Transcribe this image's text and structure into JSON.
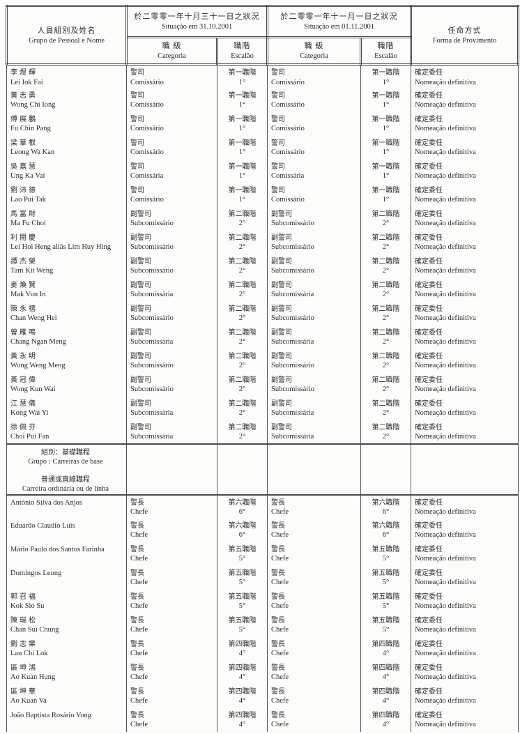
{
  "header": {
    "name_zh": "人員組別及姓名",
    "name_pt": "Grupo de Pessoal e Nome",
    "sit1_zh": "於二零零一年十月三十一日之狀況",
    "sit1_pt": "Situação em 31.10.2001",
    "sit2_zh": "於二零零一年十一月一日之狀況",
    "sit2_pt": "Situação em 01.11.2001",
    "categoria_zh": "職 級",
    "categoria_pt": "Categoria",
    "escalao_zh": "職階",
    "escalao_pt": "Escalão",
    "prov_zh": "任命方式",
    "prov_pt": "Forma de Provimento"
  },
  "rows": [
    {
      "type": "person",
      "name_zh": "李煜輝",
      "name_pt": "Lei Iok Fai",
      "cat1_zh": "警司",
      "cat1_pt": "Comissário",
      "esc1_zh": "第一職階",
      "esc1_pt": "1°",
      "cat2_zh": "警司",
      "cat2_pt": "Comissário",
      "esc2_zh": "第一職階",
      "esc2_pt": "1°",
      "prov_zh": "確定委任",
      "prov_pt": "Nomeação definitiva"
    },
    {
      "type": "person",
      "name_zh": "黃志勇",
      "name_pt": "Wong Chi Iong",
      "cat1_zh": "警司",
      "cat1_pt": "Comissário",
      "esc1_zh": "第一職階",
      "esc1_pt": "1°",
      "cat2_zh": "警司",
      "cat2_pt": "Comissário",
      "esc2_zh": "第一職階",
      "esc2_pt": "1°",
      "prov_zh": "確定委任",
      "prov_pt": "Nomeação definitiva"
    },
    {
      "type": "person",
      "name_zh": "傅展鵬",
      "name_pt": "Fu Chin Pang",
      "cat1_zh": "警司",
      "cat1_pt": "Comissário",
      "esc1_zh": "第一職階",
      "esc1_pt": "1°",
      "cat2_zh": "警司",
      "cat2_pt": "Comissário",
      "esc2_zh": "第一職階",
      "esc2_pt": "1°",
      "prov_zh": "確定委任",
      "prov_pt": "Nomeação definitiva"
    },
    {
      "type": "person",
      "name_zh": "梁華根",
      "name_pt": "Leong Wa Kan",
      "cat1_zh": "警司",
      "cat1_pt": "Comissário",
      "esc1_zh": "第一職階",
      "esc1_pt": "1°",
      "cat2_zh": "警司",
      "cat2_pt": "Comissário",
      "esc2_zh": "第一職階",
      "esc2_pt": "1°",
      "prov_zh": "確定委任",
      "prov_pt": "Nomeação definitiva"
    },
    {
      "type": "person",
      "name_zh": "吳嘉慧",
      "name_pt": "Ung Ka Vai",
      "cat1_zh": "警司",
      "cat1_pt": "Comissária",
      "esc1_zh": "第一職階",
      "esc1_pt": "1°",
      "cat2_zh": "警司",
      "cat2_pt": "Comissária",
      "esc2_zh": "第一職階",
      "esc2_pt": "1°",
      "prov_zh": "確定委任",
      "prov_pt": "Nomeação definitiva"
    },
    {
      "type": "person",
      "name_zh": "劉沛德",
      "name_pt": "Lao Pui Tak",
      "cat1_zh": "警司",
      "cat1_pt": "Comissário",
      "esc1_zh": "第一職階",
      "esc1_pt": "1°",
      "cat2_zh": "警司",
      "cat2_pt": "Comissário",
      "esc2_zh": "第一職階",
      "esc2_pt": "1°",
      "prov_zh": "確定委任",
      "prov_pt": "Nomeação definitiva"
    },
    {
      "type": "person",
      "name_zh": "馬富財",
      "name_pt": "Ma Fu Choi",
      "cat1_zh": "副警司",
      "cat1_pt": "Subcomissário",
      "esc1_zh": "第二職階",
      "esc1_pt": "2°",
      "cat2_zh": "副警司",
      "cat2_pt": "Subcomissário",
      "esc2_zh": "第二職階",
      "esc2_pt": "2°",
      "prov_zh": "確定委任",
      "prov_pt": "Nomeação definitiva"
    },
    {
      "type": "person",
      "name_zh": "利開慶",
      "name_pt": "Lei Hoi Heng aliás Lim Huy Hing",
      "cat1_zh": "副警司",
      "cat1_pt": "Subcomissário",
      "esc1_zh": "第二職階",
      "esc1_pt": "2°",
      "cat2_zh": "副警司",
      "cat2_pt": "Subcomissário",
      "esc2_zh": "第二職階",
      "esc2_pt": "2°",
      "prov_zh": "確定委任",
      "prov_pt": "Nomeação definitiva"
    },
    {
      "type": "person",
      "name_zh": "譚杰榮",
      "name_pt": "Tam Kit Weng",
      "cat1_zh": "副警司",
      "cat1_pt": "Subcomissário",
      "esc1_zh": "第二職階",
      "esc1_pt": "2°",
      "cat2_zh": "副警司",
      "cat2_pt": "Subcomissário",
      "esc2_zh": "第二職階",
      "esc2_pt": "2°",
      "prov_zh": "確定委任",
      "prov_pt": "Nomeação definitiva"
    },
    {
      "type": "person",
      "name_zh": "麥煥賢",
      "name_pt": "Mak Vun In",
      "cat1_zh": "副警司",
      "cat1_pt": "Subcomissária",
      "esc1_zh": "第二職階",
      "esc1_pt": "2°",
      "cat2_zh": "副警司",
      "cat2_pt": "Subcomissária",
      "esc2_zh": "第二職階",
      "esc2_pt": "2°",
      "prov_zh": "確定委任",
      "prov_pt": "Nomeação definitiva"
    },
    {
      "type": "person",
      "name_zh": "陳永禧",
      "name_pt": "Chan Weng Hei",
      "cat1_zh": "副警司",
      "cat1_pt": "Subcomissário",
      "esc1_zh": "第二職階",
      "esc1_pt": "2°",
      "cat2_zh": "副警司",
      "cat2_pt": "Subcomissário",
      "esc2_zh": "第二職階",
      "esc2_pt": "2°",
      "prov_zh": "確定委任",
      "prov_pt": "Nomeação definitiva"
    },
    {
      "type": "person",
      "name_zh": "曾雁鳴",
      "name_pt": "Chang Ngan Meng",
      "cat1_zh": "副警司",
      "cat1_pt": "Subcomissária",
      "esc1_zh": "第二職階",
      "esc1_pt": "2°",
      "cat2_zh": "副警司",
      "cat2_pt": "Subcomissária",
      "esc2_zh": "第二職階",
      "esc2_pt": "2°",
      "prov_zh": "確定委任",
      "prov_pt": "Nomeação definitiva"
    },
    {
      "type": "person",
      "name_zh": "黃永明",
      "name_pt": "Wong Weng Meng",
      "cat1_zh": "副警司",
      "cat1_pt": "Subcomissário",
      "esc1_zh": "第二職階",
      "esc1_pt": "2°",
      "cat2_zh": "副警司",
      "cat2_pt": "Subcomissário",
      "esc2_zh": "第二職階",
      "esc2_pt": "2°",
      "prov_zh": "確定委任",
      "prov_pt": "Nomeação definitiva"
    },
    {
      "type": "person",
      "name_zh": "黃冠偉",
      "name_pt": "Wong Kun Wai",
      "cat1_zh": "副警司",
      "cat1_pt": "Subcomissário",
      "esc1_zh": "第二職階",
      "esc1_pt": "2°",
      "cat2_zh": "副警司",
      "cat2_pt": "Subcomissário",
      "esc2_zh": "第二職階",
      "esc2_pt": "2°",
      "prov_zh": "確定委任",
      "prov_pt": "Nomeação definitiva"
    },
    {
      "type": "person",
      "name_zh": "江慧儀",
      "name_pt": "Kong Wai Yi",
      "cat1_zh": "副警司",
      "cat1_pt": "Subcomissária",
      "esc1_zh": "第二職階",
      "esc1_pt": "2°",
      "cat2_zh": "副警司",
      "cat2_pt": "Subcomissária",
      "esc2_zh": "第二職階",
      "esc2_pt": "2°",
      "prov_zh": "確定委任",
      "prov_pt": "Nomeação definitiva"
    },
    {
      "type": "person",
      "name_zh": "徐佩芬",
      "name_pt": "Choi Pui Fan",
      "cat1_zh": "副警司",
      "cat1_pt": "Subcomissária",
      "esc1_zh": "第二職階",
      "esc1_pt": "2°",
      "cat2_zh": "副警司",
      "cat2_pt": "Subcomissária",
      "esc2_zh": "第二職階",
      "esc2_pt": "2°",
      "prov_zh": "確定委任",
      "prov_pt": "Nomeação definitiva"
    },
    {
      "type": "section",
      "line1_zh": "組別：基礎職程",
      "line1_pt": "Grupo : Carreiras de base",
      "line2_zh": "普通或直線職程",
      "line2_pt": "Carreira ordinária ou de linha"
    },
    {
      "type": "person",
      "name_zh": "",
      "name_pt": "António Silva dos Anjos",
      "cat1_zh": "警長",
      "cat1_pt": "Chefe",
      "esc1_zh": "第六職階",
      "esc1_pt": "6°",
      "cat2_zh": "警長",
      "cat2_pt": "Chefe",
      "esc2_zh": "第六職階",
      "esc2_pt": "6°",
      "prov_zh": "確定委任",
      "prov_pt": "Nomeação definitiva"
    },
    {
      "type": "person",
      "name_zh": "",
      "name_pt": "Eduardo Claudio Luis",
      "cat1_zh": "警長",
      "cat1_pt": "Chefe",
      "esc1_zh": "第六職階",
      "esc1_pt": "6°",
      "cat2_zh": "警長",
      "cat2_pt": "Chefe",
      "esc2_zh": "第六職階",
      "esc2_pt": "6°",
      "prov_zh": "確定委任",
      "prov_pt": "Nomeação definitiva"
    },
    {
      "type": "person",
      "name_zh": "",
      "name_pt": "Mário Paulo dos Santos Farinha",
      "cat1_zh": "警長",
      "cat1_pt": "Chefe",
      "esc1_zh": "第五職階",
      "esc1_pt": "5°",
      "cat2_zh": "警長",
      "cat2_pt": "Chefe",
      "esc2_zh": "第五職階",
      "esc2_pt": "5°",
      "prov_zh": "確定委任",
      "prov_pt": "Nomeação definitiva"
    },
    {
      "type": "person",
      "name_zh": "",
      "name_pt": "Domingos Leong",
      "cat1_zh": "警長",
      "cat1_pt": "Chefe",
      "esc1_zh": "第五職階",
      "esc1_pt": "5°",
      "cat2_zh": "警長",
      "cat2_pt": "Chefe",
      "esc2_zh": "第五職階",
      "esc2_pt": "5°",
      "prov_zh": "確定委任",
      "prov_pt": "Nomeação definitiva"
    },
    {
      "type": "person",
      "name_zh": "郭召福",
      "name_pt": "Kok Sio Su",
      "cat1_zh": "警長",
      "cat1_pt": "Chefe",
      "esc1_zh": "第五職階",
      "esc1_pt": "5°",
      "cat2_zh": "警長",
      "cat2_pt": "Chefe",
      "esc2_zh": "第五職階",
      "esc2_pt": "5°",
      "prov_zh": "確定委任",
      "prov_pt": "Nomeação definitiva"
    },
    {
      "type": "person",
      "name_zh": "陳瑞松",
      "name_pt": "Chan Sui Chung",
      "cat1_zh": "警長",
      "cat1_pt": "Chefe",
      "esc1_zh": "第五職階",
      "esc1_pt": "5°",
      "cat2_zh": "警長",
      "cat2_pt": "Chefe",
      "esc2_zh": "第五職階",
      "esc2_pt": "5°",
      "prov_zh": "確定委任",
      "prov_pt": "Nomeação definitiva"
    },
    {
      "type": "person",
      "name_zh": "劉志樂",
      "name_pt": "Lau Chi Lok",
      "cat1_zh": "警長",
      "cat1_pt": "Chefe",
      "esc1_zh": "第四職階",
      "esc1_pt": "4°",
      "cat2_zh": "警長",
      "cat2_pt": "Chefe",
      "esc2_zh": "第四職階",
      "esc2_pt": "4°",
      "prov_zh": "確定委任",
      "prov_pt": "Nomeação definitiva"
    },
    {
      "type": "person",
      "name_zh": "區坤鴻",
      "name_pt": "Ao Kuan Hung",
      "cat1_zh": "警長",
      "cat1_pt": "Chefe",
      "esc1_zh": "第四職階",
      "esc1_pt": "4°",
      "cat2_zh": "警長",
      "cat2_pt": "Chefe",
      "esc2_zh": "第四職階",
      "esc2_pt": "4°",
      "prov_zh": "確定委任",
      "prov_pt": "Nomeação definitiva"
    },
    {
      "type": "person",
      "name_zh": "區坤華",
      "name_pt": "Ao Kuan Va",
      "cat1_zh": "警長",
      "cat1_pt": "Chefe",
      "esc1_zh": "第四職階",
      "esc1_pt": "4°",
      "cat2_zh": "警長",
      "cat2_pt": "Chefe",
      "esc2_zh": "第四職階",
      "esc2_pt": "4°",
      "prov_zh": "確定委任",
      "prov_pt": "Nomeação definitiva"
    },
    {
      "type": "person",
      "name_zh": "",
      "name_pt": "João Baptista Rosário Vong",
      "cat1_zh": "警長",
      "cat1_pt": "Chefe",
      "esc1_zh": "第四職階",
      "esc1_pt": "4°",
      "cat2_zh": "警長",
      "cat2_pt": "Chefe",
      "esc2_zh": "第四職階",
      "esc2_pt": "4°",
      "prov_zh": "確定委任",
      "prov_pt": "Nomeação definitiva"
    }
  ]
}
